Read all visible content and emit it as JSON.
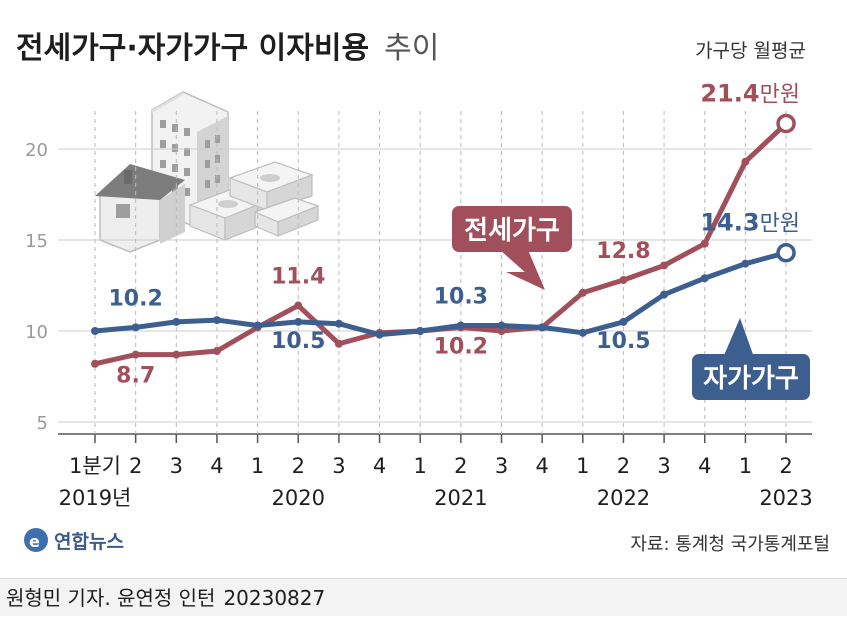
{
  "title": "전세가구·자가가구 이자비용",
  "title_suffix": "추이",
  "unit_note": "가구당 월평균",
  "source": "자료: 통계청 국가통계포털",
  "agency": "연합뉴스",
  "byline": "원형민 기자. 윤연정 인턴",
  "byline_date": "20230827",
  "colors": {
    "jeonse": "#a24f5c",
    "owner": "#3d5f8f",
    "grid": "#cccccc"
  },
  "icons": [
    "house-buildings-money-illustration",
    "yonhap-logo-icon"
  ],
  "chart_data": {
    "type": "line",
    "x": [
      "1분기",
      "2",
      "3",
      "4",
      "1",
      "2",
      "3",
      "4",
      "1",
      "2",
      "3",
      "4",
      "1",
      "2",
      "3",
      "4",
      "1",
      "2"
    ],
    "year_labels": [
      {
        "label": "2019년",
        "index": 0
      },
      {
        "label": "2020",
        "index": 5
      },
      {
        "label": "2021",
        "index": 9
      },
      {
        "label": "2022",
        "index": 13
      },
      {
        "label": "2023",
        "index": 17
      }
    ],
    "yticks": [
      5,
      10,
      15,
      20
    ],
    "ylim": [
      3,
      23
    ],
    "grid": true,
    "series": [
      {
        "name": "전세가구",
        "values": [
          8.2,
          8.7,
          8.7,
          8.9,
          10.2,
          11.4,
          9.3,
          9.9,
          10.0,
          10.2,
          10.0,
          10.2,
          12.1,
          12.8,
          13.6,
          14.8,
          19.3,
          21.4
        ],
        "labels": [
          {
            "index": 1,
            "text": "8.7"
          },
          {
            "index": 5,
            "text": "11.4"
          },
          {
            "index": 9,
            "text": "10.2"
          },
          {
            "index": 13,
            "text": "12.8"
          }
        ],
        "end_value": "21.4",
        "end_unit": "만원"
      },
      {
        "name": "자가가구",
        "values": [
          10.0,
          10.2,
          10.5,
          10.6,
          10.3,
          10.5,
          10.4,
          9.8,
          10.0,
          10.3,
          10.3,
          10.2,
          9.9,
          10.5,
          12.0,
          12.9,
          13.7,
          14.3
        ],
        "labels": [
          {
            "index": 1,
            "text": "10.2"
          },
          {
            "index": 5,
            "text": "10.5"
          },
          {
            "index": 9,
            "text": "10.3"
          },
          {
            "index": 13,
            "text": "10.5"
          }
        ],
        "end_value": "14.3",
        "end_unit": "만원"
      }
    ]
  }
}
